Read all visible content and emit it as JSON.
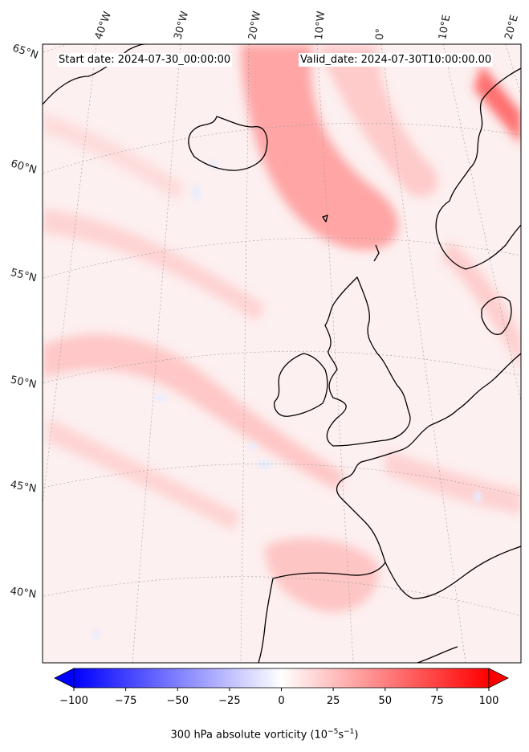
{
  "header": {
    "start_date": "Start date: 2024-07-30_00:00:00",
    "valid_date": "Valid_date: 2024-07-30T10:00:00.00"
  },
  "graticule": {
    "lat_labels": [
      "65°N",
      "60°N",
      "55°N",
      "50°N",
      "45°N",
      "40°N"
    ],
    "lon_labels": [
      "40°W",
      "30°W",
      "20°W",
      "10°W",
      "0°",
      "10°E",
      "20°E"
    ]
  },
  "colorbar": {
    "ticks": [
      "−100",
      "−75",
      "−50",
      "−25",
      "0",
      "25",
      "50",
      "75",
      "100"
    ],
    "tick_values": [
      -100,
      -75,
      -50,
      -25,
      0,
      25,
      50,
      75,
      100
    ],
    "range": [
      -100,
      100
    ],
    "label_main": "300 hPa absolute vorticity (10",
    "label_exp1": "−5",
    "label_mid": "s",
    "label_exp2": "−1",
    "label_end": ")",
    "low_color": "#0000ff",
    "mid_color": "#ffffff",
    "high_color": "#ff0000"
  },
  "map": {
    "field": "300 hPa absolute vorticity",
    "ocean_background": "#fdeeee",
    "coastline_color": "#000000"
  }
}
